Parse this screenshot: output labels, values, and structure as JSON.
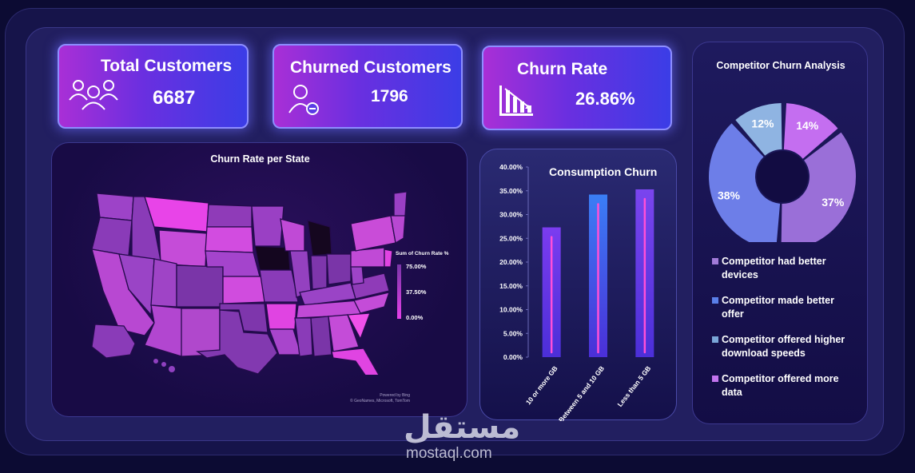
{
  "kpis": {
    "total_customers": {
      "title": "Total Customers",
      "value": "6687",
      "icon": "users-group-icon"
    },
    "churned_customers": {
      "title": "Churned Customers",
      "value": "1796",
      "icon": "user-minus-icon"
    },
    "churn_rate": {
      "title": "Churn Rate",
      "value": "26.86%",
      "icon": "declining-bar-chart-icon"
    }
  },
  "map": {
    "title": "Churn Rate per State",
    "legend_title": "Sum of Churn Rate %",
    "legend_ticks": [
      "75.00%",
      "37.50%",
      "0.00%"
    ],
    "credit_line1": "Powered by Bing",
    "credit_line2": "© GeoNames, Microsoft, TomTom",
    "colors": {
      "low": "#7a35a8",
      "high": "#e640e8"
    }
  },
  "chart_data": [
    {
      "type": "bar",
      "title": "Consumption Churn",
      "categories": [
        "10 or more GB",
        "Between 5 and 10 GB",
        "Less than 5 GB"
      ],
      "values": [
        27.3,
        34.2,
        35.3
      ],
      "ylim": [
        0,
        40
      ],
      "yticks": [
        "0.00%",
        "5.00%",
        "10.00%",
        "15.00%",
        "20.00%",
        "25.00%",
        "30.00%",
        "35.00%",
        "40.00%"
      ],
      "xlabel": "",
      "ylabel": "",
      "colors": [
        "#7b3cf0",
        "#3a7ef5",
        "#7a45ee"
      ]
    },
    {
      "type": "pie",
      "title": "Competitor Churn Analysis",
      "labels": [
        "Competitor offered more data",
        "Competitor had better devices",
        "Competitor made better offer",
        "Competitor offered higher download speeds"
      ],
      "values": [
        14,
        37,
        38,
        12
      ],
      "value_labels": [
        "14%",
        "37%",
        "38%",
        "12%"
      ],
      "colors": [
        "#c46ef0",
        "#9a6fd8",
        "#6d7ee8",
        "#8fb4e2"
      ],
      "legend": [
        {
          "label": "Competitor had better devices",
          "color": "#a17ad8"
        },
        {
          "label": "Competitor made better offer",
          "color": "#5a7fe8"
        },
        {
          "label": "Competitor offered higher download speeds",
          "color": "#7aa6d8"
        },
        {
          "label": "Competitor offered more data",
          "color": "#c274ee"
        }
      ]
    }
  ],
  "watermark": {
    "arabic": "مستقل",
    "latin": "mostaql.com"
  }
}
